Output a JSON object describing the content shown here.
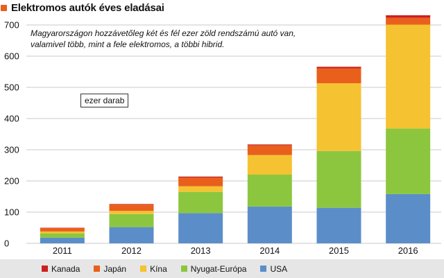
{
  "title": "Elektromos autók éves eladásai",
  "title_marker_color": "#e8601c",
  "annotation_lines": [
    "Magyarországon hozzávetőleg két és fél ezer zöld rendszámú autó van,",
    "valamivel több, mint a fele elektromos, a többi hibrid."
  ],
  "unit_label": "ezer darab",
  "chart_data": {
    "type": "bar",
    "stacked": true,
    "title": "Elektromos autók éves eladásai",
    "categories": [
      "2011",
      "2012",
      "2013",
      "2014",
      "2015",
      "2016"
    ],
    "ylim": [
      0,
      700
    ],
    "yticks": [
      0,
      100,
      200,
      300,
      400,
      500,
      600,
      700
    ],
    "grid": true,
    "legend_position": "bottom",
    "series": [
      {
        "name": "USA",
        "color": "#5b8ec9",
        "values": [
          18,
          52,
          97,
          118,
          114,
          158
        ]
      },
      {
        "name": "Nyugat-Európa",
        "color": "#8cc63f",
        "values": [
          14,
          42,
          68,
          102,
          182,
          210
        ]
      },
      {
        "name": "Kína",
        "color": "#f5c231",
        "values": [
          6,
          10,
          18,
          63,
          217,
          333
        ]
      },
      {
        "name": "Japán",
        "color": "#e8601c",
        "values": [
          11,
          20,
          28,
          31,
          48,
          22
        ]
      },
      {
        "name": "Kanada",
        "color": "#cc1f1f",
        "values": [
          1,
          2,
          3,
          3,
          5,
          8
        ]
      }
    ]
  },
  "legend": [
    {
      "name": "Kanada",
      "color": "#cc1f1f"
    },
    {
      "name": "Japán",
      "color": "#e8601c"
    },
    {
      "name": "Kína",
      "color": "#f5c231"
    },
    {
      "name": "Nyugat-Európa",
      "color": "#8cc63f"
    },
    {
      "name": "USA",
      "color": "#5b8ec9"
    }
  ]
}
